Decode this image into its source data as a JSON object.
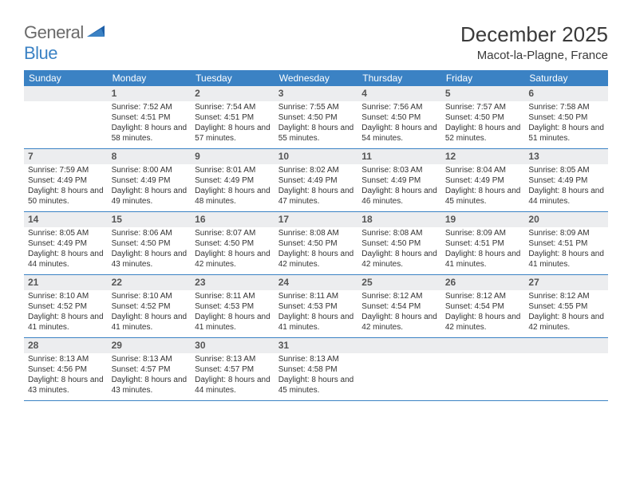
{
  "logo": {
    "general": "General",
    "blue": "Blue"
  },
  "title": "December 2025",
  "location": "Macot-la-Plagne, France",
  "header_bg": "#3b82c4",
  "daynum_bg": "#ecedef",
  "week_border": "#3b82c4",
  "weekdays": [
    "Sunday",
    "Monday",
    "Tuesday",
    "Wednesday",
    "Thursday",
    "Friday",
    "Saturday"
  ],
  "weeks": [
    [
      {
        "n": "",
        "sr": "",
        "ss": "",
        "dl": ""
      },
      {
        "n": "1",
        "sr": "Sunrise: 7:52 AM",
        "ss": "Sunset: 4:51 PM",
        "dl": "Daylight: 8 hours and 58 minutes."
      },
      {
        "n": "2",
        "sr": "Sunrise: 7:54 AM",
        "ss": "Sunset: 4:51 PM",
        "dl": "Daylight: 8 hours and 57 minutes."
      },
      {
        "n": "3",
        "sr": "Sunrise: 7:55 AM",
        "ss": "Sunset: 4:50 PM",
        "dl": "Daylight: 8 hours and 55 minutes."
      },
      {
        "n": "4",
        "sr": "Sunrise: 7:56 AM",
        "ss": "Sunset: 4:50 PM",
        "dl": "Daylight: 8 hours and 54 minutes."
      },
      {
        "n": "5",
        "sr": "Sunrise: 7:57 AM",
        "ss": "Sunset: 4:50 PM",
        "dl": "Daylight: 8 hours and 52 minutes."
      },
      {
        "n": "6",
        "sr": "Sunrise: 7:58 AM",
        "ss": "Sunset: 4:50 PM",
        "dl": "Daylight: 8 hours and 51 minutes."
      }
    ],
    [
      {
        "n": "7",
        "sr": "Sunrise: 7:59 AM",
        "ss": "Sunset: 4:49 PM",
        "dl": "Daylight: 8 hours and 50 minutes."
      },
      {
        "n": "8",
        "sr": "Sunrise: 8:00 AM",
        "ss": "Sunset: 4:49 PM",
        "dl": "Daylight: 8 hours and 49 minutes."
      },
      {
        "n": "9",
        "sr": "Sunrise: 8:01 AM",
        "ss": "Sunset: 4:49 PM",
        "dl": "Daylight: 8 hours and 48 minutes."
      },
      {
        "n": "10",
        "sr": "Sunrise: 8:02 AM",
        "ss": "Sunset: 4:49 PM",
        "dl": "Daylight: 8 hours and 47 minutes."
      },
      {
        "n": "11",
        "sr": "Sunrise: 8:03 AM",
        "ss": "Sunset: 4:49 PM",
        "dl": "Daylight: 8 hours and 46 minutes."
      },
      {
        "n": "12",
        "sr": "Sunrise: 8:04 AM",
        "ss": "Sunset: 4:49 PM",
        "dl": "Daylight: 8 hours and 45 minutes."
      },
      {
        "n": "13",
        "sr": "Sunrise: 8:05 AM",
        "ss": "Sunset: 4:49 PM",
        "dl": "Daylight: 8 hours and 44 minutes."
      }
    ],
    [
      {
        "n": "14",
        "sr": "Sunrise: 8:05 AM",
        "ss": "Sunset: 4:49 PM",
        "dl": "Daylight: 8 hours and 44 minutes."
      },
      {
        "n": "15",
        "sr": "Sunrise: 8:06 AM",
        "ss": "Sunset: 4:50 PM",
        "dl": "Daylight: 8 hours and 43 minutes."
      },
      {
        "n": "16",
        "sr": "Sunrise: 8:07 AM",
        "ss": "Sunset: 4:50 PM",
        "dl": "Daylight: 8 hours and 42 minutes."
      },
      {
        "n": "17",
        "sr": "Sunrise: 8:08 AM",
        "ss": "Sunset: 4:50 PM",
        "dl": "Daylight: 8 hours and 42 minutes."
      },
      {
        "n": "18",
        "sr": "Sunrise: 8:08 AM",
        "ss": "Sunset: 4:50 PM",
        "dl": "Daylight: 8 hours and 42 minutes."
      },
      {
        "n": "19",
        "sr": "Sunrise: 8:09 AM",
        "ss": "Sunset: 4:51 PM",
        "dl": "Daylight: 8 hours and 41 minutes."
      },
      {
        "n": "20",
        "sr": "Sunrise: 8:09 AM",
        "ss": "Sunset: 4:51 PM",
        "dl": "Daylight: 8 hours and 41 minutes."
      }
    ],
    [
      {
        "n": "21",
        "sr": "Sunrise: 8:10 AM",
        "ss": "Sunset: 4:52 PM",
        "dl": "Daylight: 8 hours and 41 minutes."
      },
      {
        "n": "22",
        "sr": "Sunrise: 8:10 AM",
        "ss": "Sunset: 4:52 PM",
        "dl": "Daylight: 8 hours and 41 minutes."
      },
      {
        "n": "23",
        "sr": "Sunrise: 8:11 AM",
        "ss": "Sunset: 4:53 PM",
        "dl": "Daylight: 8 hours and 41 minutes."
      },
      {
        "n": "24",
        "sr": "Sunrise: 8:11 AM",
        "ss": "Sunset: 4:53 PM",
        "dl": "Daylight: 8 hours and 41 minutes."
      },
      {
        "n": "25",
        "sr": "Sunrise: 8:12 AM",
        "ss": "Sunset: 4:54 PM",
        "dl": "Daylight: 8 hours and 42 minutes."
      },
      {
        "n": "26",
        "sr": "Sunrise: 8:12 AM",
        "ss": "Sunset: 4:54 PM",
        "dl": "Daylight: 8 hours and 42 minutes."
      },
      {
        "n": "27",
        "sr": "Sunrise: 8:12 AM",
        "ss": "Sunset: 4:55 PM",
        "dl": "Daylight: 8 hours and 42 minutes."
      }
    ],
    [
      {
        "n": "28",
        "sr": "Sunrise: 8:13 AM",
        "ss": "Sunset: 4:56 PM",
        "dl": "Daylight: 8 hours and 43 minutes."
      },
      {
        "n": "29",
        "sr": "Sunrise: 8:13 AM",
        "ss": "Sunset: 4:57 PM",
        "dl": "Daylight: 8 hours and 43 minutes."
      },
      {
        "n": "30",
        "sr": "Sunrise: 8:13 AM",
        "ss": "Sunset: 4:57 PM",
        "dl": "Daylight: 8 hours and 44 minutes."
      },
      {
        "n": "31",
        "sr": "Sunrise: 8:13 AM",
        "ss": "Sunset: 4:58 PM",
        "dl": "Daylight: 8 hours and 45 minutes."
      },
      {
        "n": "",
        "sr": "",
        "ss": "",
        "dl": ""
      },
      {
        "n": "",
        "sr": "",
        "ss": "",
        "dl": ""
      },
      {
        "n": "",
        "sr": "",
        "ss": "",
        "dl": ""
      }
    ]
  ]
}
